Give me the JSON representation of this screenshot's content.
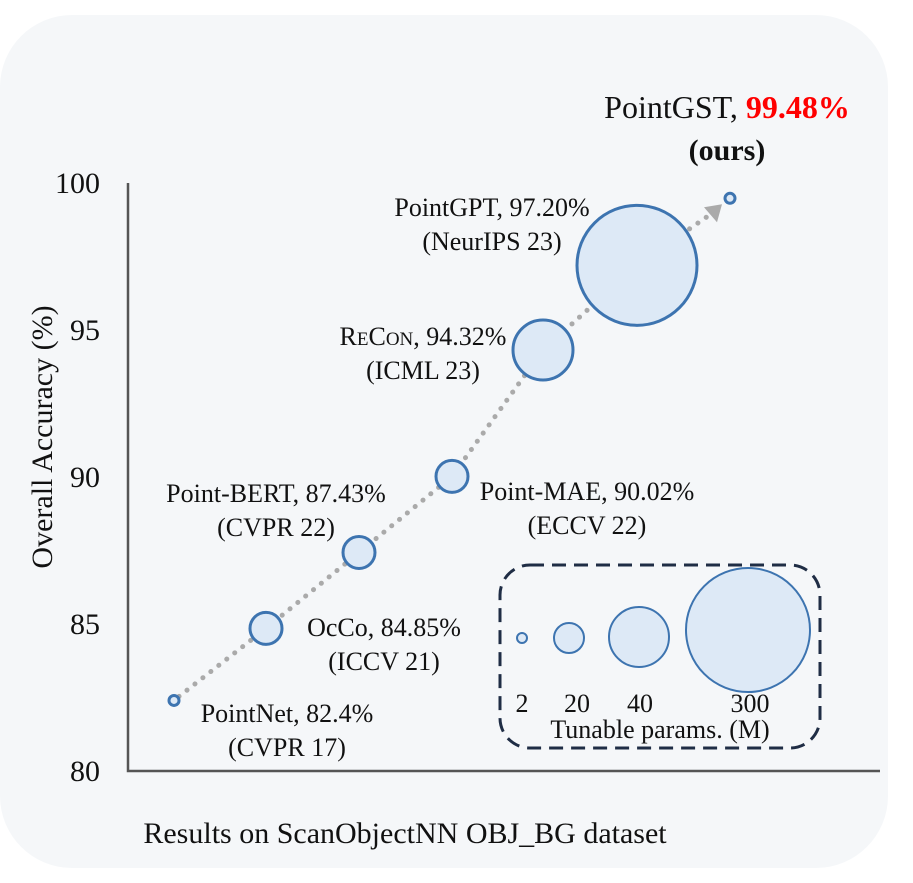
{
  "chart_data": {
    "type": "scatter",
    "subtype": "bubble",
    "title": "",
    "caption": "Results on ScanObjectNN OBJ_BG dataset",
    "xlabel": "",
    "ylabel": "Overall Accuracy (%)",
    "ylim": [
      80,
      100
    ],
    "yticks": [
      "80",
      "85",
      "90",
      "95",
      "100"
    ],
    "grid": false,
    "points": [
      {
        "name": "PointNet",
        "accuracy": 82.4,
        "accuracy_label": "82.4%",
        "venue": "(CVPR 17)",
        "params_m": 3.5,
        "label_side": "right-below"
      },
      {
        "name": "OcCo",
        "accuracy": 84.85,
        "accuracy_label": "84.85%",
        "venue": "(ICCV 21)",
        "params_m": 22.1,
        "label_side": "right"
      },
      {
        "name": "Point-BERT",
        "accuracy": 87.43,
        "accuracy_label": "87.43%",
        "venue": "(CVPR 22)",
        "params_m": 22.1,
        "label_side": "left-above"
      },
      {
        "name": "Point-MAE",
        "accuracy": 90.02,
        "accuracy_label": "90.02%",
        "venue": "(ECCV 22)",
        "params_m": 22.1,
        "label_side": "right-below"
      },
      {
        "name": "ReCon",
        "accuracy": 94.32,
        "accuracy_label": "94.32%",
        "venue": "(ICML 23)",
        "params_m": 43.6,
        "label_side": "left"
      },
      {
        "name": "PointGPT",
        "accuracy": 97.2,
        "accuracy_label": "97.20%",
        "venue": "(NeurIPS 23)",
        "params_m": 310,
        "label_side": "left-above"
      },
      {
        "name": "PointGST",
        "accuracy": 99.48,
        "accuracy_label": "99.48%",
        "venue": "(ours)",
        "params_m": 0.6,
        "label_side": "above",
        "highlight": true
      }
    ],
    "trend_arrow": {
      "style": "dotted",
      "color": "#aaaaaa",
      "from": "PointNet",
      "to": "PointGST"
    },
    "size_legend": {
      "title": "Tunable params. (M)",
      "placement": "bottom-right",
      "entries": [
        {
          "label": "2",
          "value": 2
        },
        {
          "label": "20",
          "value": 20
        },
        {
          "label": "40",
          "value": 40
        },
        {
          "label": "300",
          "value": 300
        }
      ]
    },
    "colors": {
      "bubble_fill": "#dde9f6",
      "bubble_stroke": "#3d74b0",
      "highlight_text": "#ff0000",
      "axis": "#555555",
      "legend_border": "#1f2d45",
      "background": "#f5f7f9"
    }
  }
}
